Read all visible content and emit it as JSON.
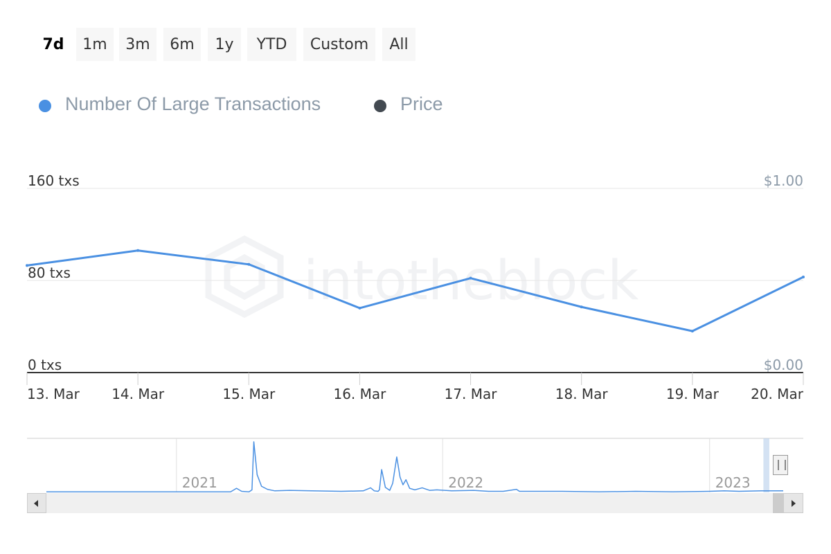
{
  "range_selector": {
    "buttons": [
      {
        "label": "7d",
        "active": true
      },
      {
        "label": "1m",
        "active": false
      },
      {
        "label": "3m",
        "active": false
      },
      {
        "label": "6m",
        "active": false
      },
      {
        "label": "1y",
        "active": false
      },
      {
        "label": "YTD",
        "active": false
      },
      {
        "label": "Custom",
        "active": false
      },
      {
        "label": "All",
        "active": false
      }
    ]
  },
  "legend": {
    "items": [
      {
        "label": "Number Of Large Transactions",
        "color": "#4a90e2"
      },
      {
        "label": "Price",
        "color": "#434a51"
      }
    ]
  },
  "watermark": "intotheblock",
  "colors": {
    "series": "#4a90e2",
    "price_axis": "#8c9aa8",
    "axis_label": "#333333",
    "grid": "#e6e6e6"
  },
  "chart_data": {
    "type": "line",
    "x": [
      "13. Mar",
      "14. Mar",
      "15. Mar",
      "16. Mar",
      "17. Mar",
      "18. Mar",
      "19. Mar",
      "20. Mar"
    ],
    "series": [
      {
        "name": "Number Of Large Transactions",
        "values": [
          93,
          106,
          94,
          56,
          82,
          57,
          36,
          83
        ]
      }
    ],
    "y_left": {
      "ticks": [
        0,
        80,
        160
      ],
      "tick_labels": [
        "0 txs",
        "80 txs",
        "160 txs"
      ],
      "ylim": [
        0,
        160
      ]
    },
    "y_right": {
      "ticks": [
        0,
        1
      ],
      "tick_labels": [
        "$0.00",
        "$1.00"
      ],
      "ylim": [
        0,
        1
      ]
    },
    "x_tick_labels": [
      "13. Mar",
      "14. Mar",
      "15. Mar",
      "16. Mar",
      "17. Mar",
      "18. Mar",
      "19. Mar",
      "20. Mar"
    ],
    "grid": true,
    "legend_position": "top-left",
    "navigator": {
      "year_labels": [
        "2021",
        "2022",
        "2023"
      ],
      "year_fractions": [
        0.1765,
        0.5378,
        0.9001
      ],
      "series_peaks": [
        {
          "t": 0.0,
          "v": 0.01
        },
        {
          "t": 0.25,
          "v": 0.01
        },
        {
          "t": 0.258,
          "v": 0.08
        },
        {
          "t": 0.265,
          "v": 0.02
        },
        {
          "t": 0.275,
          "v": 0.01
        },
        {
          "t": 0.279,
          "v": 0.05
        },
        {
          "t": 0.2815,
          "v": 1.0
        },
        {
          "t": 0.286,
          "v": 0.35
        },
        {
          "t": 0.292,
          "v": 0.12
        },
        {
          "t": 0.3,
          "v": 0.06
        },
        {
          "t": 0.31,
          "v": 0.03
        },
        {
          "t": 0.33,
          "v": 0.04
        },
        {
          "t": 0.36,
          "v": 0.03
        },
        {
          "t": 0.4,
          "v": 0.02
        },
        {
          "t": 0.43,
          "v": 0.03
        },
        {
          "t": 0.44,
          "v": 0.09
        },
        {
          "t": 0.445,
          "v": 0.03
        },
        {
          "t": 0.45,
          "v": 0.02
        },
        {
          "t": 0.452,
          "v": 0.05
        },
        {
          "t": 0.455,
          "v": 0.45
        },
        {
          "t": 0.46,
          "v": 0.1
        },
        {
          "t": 0.466,
          "v": 0.04
        },
        {
          "t": 0.47,
          "v": 0.18
        },
        {
          "t": 0.4755,
          "v": 0.7
        },
        {
          "t": 0.48,
          "v": 0.3
        },
        {
          "t": 0.484,
          "v": 0.15
        },
        {
          "t": 0.488,
          "v": 0.25
        },
        {
          "t": 0.493,
          "v": 0.08
        },
        {
          "t": 0.5,
          "v": 0.05
        },
        {
          "t": 0.51,
          "v": 0.09
        },
        {
          "t": 0.52,
          "v": 0.04
        },
        {
          "t": 0.53,
          "v": 0.05
        },
        {
          "t": 0.55,
          "v": 0.03
        },
        {
          "t": 0.58,
          "v": 0.04
        },
        {
          "t": 0.6,
          "v": 0.02
        },
        {
          "t": 0.62,
          "v": 0.02
        },
        {
          "t": 0.638,
          "v": 0.06
        },
        {
          "t": 0.642,
          "v": 0.02
        },
        {
          "t": 0.7,
          "v": 0.02
        },
        {
          "t": 0.75,
          "v": 0.01
        },
        {
          "t": 0.8,
          "v": 0.02
        },
        {
          "t": 0.85,
          "v": 0.01
        },
        {
          "t": 0.9,
          "v": 0.02
        },
        {
          "t": 0.92,
          "v": 0.03
        },
        {
          "t": 0.94,
          "v": 0.02
        },
        {
          "t": 0.97,
          "v": 0.03
        },
        {
          "t": 1.0,
          "v": 0.03
        }
      ],
      "selected_range": [
        0.975,
        0.983
      ]
    }
  }
}
